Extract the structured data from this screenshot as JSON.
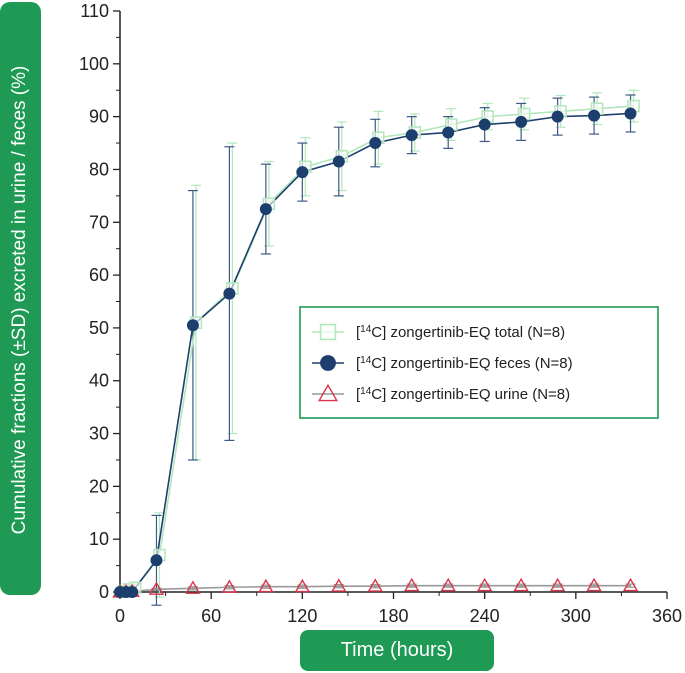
{
  "chart_data": {
    "type": "line",
    "xlabel": "Time (hours)",
    "ylabel": "Cumulative fractions (±SD) excreted in urine / feces (%)",
    "xlim": [
      0,
      360
    ],
    "ylim": [
      0,
      110
    ],
    "xticks": [
      0,
      60,
      120,
      180,
      240,
      300,
      360
    ],
    "yticks": [
      0,
      10,
      20,
      30,
      40,
      50,
      60,
      70,
      80,
      90,
      100,
      110
    ],
    "grid": false,
    "legend_position": "center-right",
    "series": [
      {
        "name": "zongertinib-EQ total (N=8)",
        "label_prefix": "[",
        "label_sup": "14",
        "label_suffix": "C] ",
        "marker": "open-square",
        "color": "#b2e6bc",
        "x": [
          0,
          4,
          8,
          24,
          48,
          72,
          96,
          120,
          144,
          168,
          192,
          216,
          240,
          264,
          288,
          312,
          336
        ],
        "y": [
          0.1,
          0.5,
          0.8,
          7,
          51,
          57.5,
          73.5,
          80.5,
          82.5,
          86,
          87,
          88.5,
          90,
          90.5,
          91,
          91.5,
          92
        ],
        "sd": [
          0,
          0.2,
          0.5,
          8,
          26,
          27.5,
          8,
          5.5,
          6.5,
          5,
          3.5,
          3,
          2.5,
          3,
          3,
          3,
          3
        ]
      },
      {
        "name": "zongertinib-EQ feces (N=8)",
        "label_prefix": "[",
        "label_sup": "14",
        "label_suffix": "C] ",
        "marker": "filled-circle",
        "color": "#1d3f6e",
        "x": [
          0,
          4,
          8,
          24,
          48,
          72,
          96,
          120,
          144,
          168,
          192,
          216,
          240,
          264,
          288,
          312,
          336
        ],
        "y": [
          0,
          0,
          0,
          6,
          50.5,
          56.5,
          72.5,
          79.5,
          81.5,
          85,
          86.5,
          87,
          88.5,
          89,
          90,
          90.2,
          90.6
        ],
        "sd": [
          0,
          0,
          0,
          8.5,
          25.5,
          27.8,
          8.5,
          5.5,
          6.5,
          4.5,
          3.5,
          3,
          3.2,
          3.5,
          3.5,
          3.5,
          3.5
        ]
      },
      {
        "name": "zongertinib-EQ urine (N=8)",
        "label_prefix": "[",
        "label_sup": "14",
        "label_suffix": "C] ",
        "marker": "open-triangle",
        "color": "#d9344a",
        "line_color": "#999999",
        "x": [
          0,
          4,
          8,
          24,
          48,
          72,
          96,
          120,
          144,
          168,
          192,
          216,
          240,
          264,
          288,
          312,
          336
        ],
        "y": [
          0,
          0.05,
          0.1,
          0.5,
          0.7,
          0.9,
          1.0,
          1.0,
          1.1,
          1.1,
          1.2,
          1.2,
          1.2,
          1.2,
          1.2,
          1.2,
          1.2
        ],
        "sd": [
          0,
          0,
          0,
          0.2,
          0.3,
          0.3,
          0.3,
          0.3,
          0.3,
          0.3,
          0.3,
          0.3,
          0.3,
          0.3,
          0.3,
          0.3,
          0.3
        ]
      }
    ]
  }
}
